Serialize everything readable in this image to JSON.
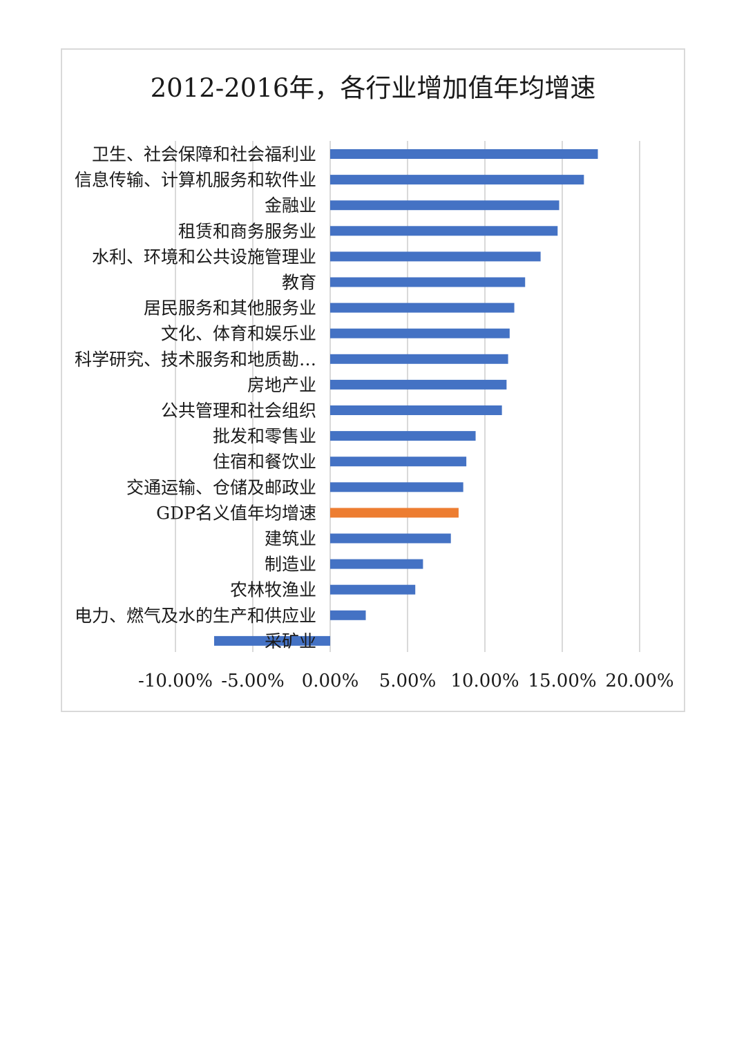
{
  "chart_data": {
    "type": "bar",
    "orientation": "horizontal",
    "title": "2012-2016年，各行业增加值年均增速",
    "xlabel": "",
    "ylabel": "",
    "xlim": [
      -0.1,
      0.2
    ],
    "ticks": [
      -0.1,
      -0.05,
      0.0,
      0.05,
      0.1,
      0.15,
      0.2
    ],
    "tick_labels": [
      "-10.00%",
      "-5.00%",
      "0.00%",
      "5.00%",
      "10.00%",
      "15.00%",
      "20.00%"
    ],
    "grid": true,
    "legend": "none",
    "default_color": "#4472c4",
    "highlight_color": "#ed7d31",
    "categories": [
      {
        "label": "卫生、社会保障和社会福利业",
        "value": 0.173
      },
      {
        "label": "信息传输、计算机服务和软件业",
        "value": 0.164
      },
      {
        "label": "金融业",
        "value": 0.148
      },
      {
        "label": "租赁和商务服务业",
        "value": 0.147
      },
      {
        "label": "水利、环境和公共设施管理业",
        "value": 0.136
      },
      {
        "label": "教育",
        "value": 0.126
      },
      {
        "label": "居民服务和其他服务业",
        "value": 0.119
      },
      {
        "label": "文化、体育和娱乐业",
        "value": 0.116
      },
      {
        "label": "科学研究、技术服务和地质勘…",
        "value": 0.115
      },
      {
        "label": "房地产业",
        "value": 0.114
      },
      {
        "label": "公共管理和社会组织",
        "value": 0.111
      },
      {
        "label": "批发和零售业",
        "value": 0.094
      },
      {
        "label": "住宿和餐饮业",
        "value": 0.088
      },
      {
        "label": "交通运输、仓储及邮政业",
        "value": 0.086
      },
      {
        "label": "GDP名义值年均增速",
        "value": 0.083,
        "highlight": true
      },
      {
        "label": "建筑业",
        "value": 0.078
      },
      {
        "label": "制造业",
        "value": 0.06
      },
      {
        "label": "农林牧渔业",
        "value": 0.055
      },
      {
        "label": "电力、燃气及水的生产和供应业",
        "value": 0.023
      },
      {
        "label": "采矿业",
        "value": -0.075
      }
    ]
  }
}
